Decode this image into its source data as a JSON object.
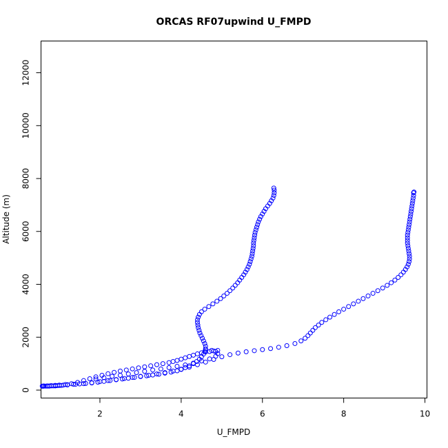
{
  "chart_data": {
    "type": "scatter",
    "title": "ORCAS RF07upwind U_FMPD",
    "xlabel": "U_FMPD",
    "ylabel": "Altitude (m)",
    "xlim": [
      0.55,
      10.05
    ],
    "ylim": [
      -300,
      13200
    ],
    "x_ticks": [
      2,
      4,
      6,
      8,
      10
    ],
    "y_ticks": [
      0,
      2000,
      4000,
      6000,
      8000,
      10000,
      12000
    ],
    "grid": false,
    "marker": "open-circle",
    "color": "#0000ff",
    "series": [
      {
        "points": [
          [
            0.6,
            150
          ],
          [
            0.65,
            150
          ],
          [
            0.7,
            150
          ],
          [
            0.75,
            155
          ],
          [
            0.8,
            160
          ],
          [
            0.85,
            160
          ],
          [
            0.9,
            165
          ],
          [
            0.95,
            170
          ],
          [
            1.0,
            175
          ],
          [
            1.1,
            190
          ],
          [
            1.2,
            205
          ],
          [
            1.35,
            220
          ],
          [
            1.5,
            235
          ],
          [
            1.65,
            250
          ],
          [
            1.8,
            270
          ],
          [
            1.95,
            300
          ],
          [
            2.1,
            330
          ],
          [
            2.25,
            360
          ],
          [
            2.4,
            390
          ],
          [
            2.55,
            420
          ],
          [
            2.7,
            450
          ],
          [
            2.85,
            480
          ],
          [
            3.0,
            510
          ],
          [
            3.15,
            540
          ],
          [
            3.3,
            570
          ],
          [
            3.45,
            600
          ],
          [
            3.6,
            640
          ],
          [
            3.75,
            680
          ],
          [
            3.9,
            730
          ],
          [
            4.0,
            780
          ],
          [
            4.1,
            850
          ],
          [
            4.2,
            920
          ],
          [
            4.3,
            1000
          ],
          [
            4.38,
            1080
          ],
          [
            4.45,
            1170
          ],
          [
            4.5,
            1260
          ],
          [
            4.55,
            1360
          ],
          [
            4.58,
            1460
          ],
          [
            4.6,
            1560
          ],
          [
            4.6,
            1660
          ],
          [
            4.58,
            1760
          ],
          [
            4.55,
            1860
          ],
          [
            4.52,
            1960
          ],
          [
            4.49,
            2060
          ],
          [
            4.46,
            2160
          ],
          [
            4.44,
            2260
          ],
          [
            4.42,
            2360
          ],
          [
            4.41,
            2460
          ],
          [
            4.4,
            2560
          ],
          [
            4.4,
            2660
          ],
          [
            4.42,
            2760
          ],
          [
            4.45,
            2860
          ],
          [
            4.5,
            2960
          ],
          [
            4.58,
            3060
          ],
          [
            4.68,
            3160
          ],
          [
            4.78,
            3260
          ],
          [
            4.88,
            3360
          ],
          [
            4.97,
            3460
          ],
          [
            5.05,
            3560
          ],
          [
            5.13,
            3660
          ],
          [
            5.2,
            3760
          ],
          [
            5.27,
            3860
          ],
          [
            5.33,
            3960
          ],
          [
            5.39,
            4060
          ],
          [
            5.44,
            4160
          ],
          [
            5.49,
            4260
          ],
          [
            5.54,
            4360
          ],
          [
            5.58,
            4460
          ],
          [
            5.62,
            4560
          ],
          [
            5.65,
            4660
          ],
          [
            5.68,
            4760
          ],
          [
            5.7,
            4860
          ],
          [
            5.72,
            4960
          ],
          [
            5.74,
            5060
          ],
          [
            5.75,
            5160
          ],
          [
            5.76,
            5260
          ],
          [
            5.77,
            5360
          ],
          [
            5.78,
            5460
          ],
          [
            5.78,
            5560
          ],
          [
            5.79,
            5660
          ],
          [
            5.8,
            5760
          ],
          [
            5.81,
            5860
          ],
          [
            5.82,
            5960
          ],
          [
            5.84,
            6060
          ],
          [
            5.86,
            6160
          ],
          [
            5.88,
            6260
          ],
          [
            5.9,
            6360
          ],
          [
            5.93,
            6460
          ],
          [
            5.96,
            6560
          ],
          [
            6.0,
            6660
          ],
          [
            6.04,
            6760
          ],
          [
            6.08,
            6860
          ],
          [
            6.13,
            6960
          ],
          [
            6.18,
            7060
          ],
          [
            6.22,
            7160
          ],
          [
            6.26,
            7260
          ],
          [
            6.28,
            7360
          ],
          [
            6.29,
            7460
          ],
          [
            6.29,
            7560
          ],
          [
            6.28,
            7640
          ]
        ]
      },
      {
        "points": [
          [
            4.9,
            1500
          ],
          [
            4.8,
            1480
          ],
          [
            4.7,
            1460
          ],
          [
            4.6,
            1440
          ],
          [
            4.5,
            1410
          ],
          [
            4.4,
            1370
          ],
          [
            4.3,
            1320
          ],
          [
            4.2,
            1270
          ],
          [
            4.1,
            1220
          ],
          [
            4.0,
            1170
          ],
          [
            3.9,
            1120
          ],
          [
            3.8,
            1080
          ],
          [
            3.7,
            1040
          ],
          [
            3.55,
            1000
          ],
          [
            3.4,
            960
          ],
          [
            3.25,
            920
          ],
          [
            3.1,
            880
          ],
          [
            2.95,
            840
          ],
          [
            2.8,
            800
          ],
          [
            2.65,
            760
          ],
          [
            2.5,
            720
          ],
          [
            2.35,
            670
          ],
          [
            2.2,
            620
          ],
          [
            2.05,
            560
          ],
          [
            1.9,
            500
          ],
          [
            1.75,
            430
          ],
          [
            1.6,
            360
          ],
          [
            1.45,
            290
          ],
          [
            1.3,
            240
          ],
          [
            1.15,
            210
          ],
          [
            1.0,
            190
          ],
          [
            0.9,
            180
          ],
          [
            0.8,
            170
          ],
          [
            0.7,
            160
          ],
          [
            0.62,
            155
          ],
          [
            0.58,
            150
          ]
        ]
      },
      {
        "points": [
          [
            0.6,
            145
          ],
          [
            0.75,
            150
          ],
          [
            0.9,
            160
          ],
          [
            1.05,
            175
          ],
          [
            1.2,
            195
          ],
          [
            1.4,
            220
          ],
          [
            1.6,
            245
          ],
          [
            1.8,
            280
          ],
          [
            2.0,
            320
          ],
          [
            2.2,
            360
          ],
          [
            2.4,
            400
          ],
          [
            2.6,
            440
          ],
          [
            2.8,
            480
          ],
          [
            3.0,
            520
          ],
          [
            3.2,
            560
          ],
          [
            3.4,
            610
          ],
          [
            3.6,
            660
          ],
          [
            3.8,
            720
          ],
          [
            4.0,
            790
          ],
          [
            4.2,
            870
          ],
          [
            4.4,
            960
          ],
          [
            4.6,
            1060
          ],
          [
            4.8,
            1160
          ],
          [
            5.0,
            1260
          ],
          [
            5.2,
            1340
          ],
          [
            5.4,
            1400
          ],
          [
            5.6,
            1450
          ],
          [
            5.8,
            1490
          ],
          [
            6.0,
            1530
          ],
          [
            6.2,
            1570
          ],
          [
            6.4,
            1620
          ],
          [
            6.6,
            1680
          ],
          [
            6.8,
            1760
          ],
          [
            6.95,
            1860
          ],
          [
            7.05,
            1960
          ],
          [
            7.12,
            2060
          ],
          [
            7.18,
            2160
          ],
          [
            7.24,
            2260
          ],
          [
            7.3,
            2360
          ],
          [
            7.38,
            2460
          ],
          [
            7.46,
            2560
          ],
          [
            7.56,
            2660
          ],
          [
            7.66,
            2760
          ],
          [
            7.77,
            2860
          ],
          [
            7.88,
            2960
          ],
          [
            8.0,
            3060
          ],
          [
            8.12,
            3160
          ],
          [
            8.24,
            3260
          ],
          [
            8.36,
            3360
          ],
          [
            8.48,
            3460
          ],
          [
            8.6,
            3560
          ],
          [
            8.72,
            3660
          ],
          [
            8.84,
            3760
          ],
          [
            8.96,
            3860
          ],
          [
            9.07,
            3960
          ],
          [
            9.17,
            4060
          ],
          [
            9.26,
            4160
          ],
          [
            9.34,
            4260
          ],
          [
            9.41,
            4360
          ],
          [
            9.47,
            4460
          ],
          [
            9.52,
            4560
          ],
          [
            9.56,
            4660
          ],
          [
            9.59,
            4760
          ],
          [
            9.61,
            4860
          ],
          [
            9.62,
            4960
          ],
          [
            9.62,
            5060
          ],
          [
            9.61,
            5160
          ],
          [
            9.6,
            5260
          ],
          [
            9.59,
            5360
          ],
          [
            9.58,
            5460
          ],
          [
            9.57,
            5560
          ],
          [
            9.57,
            5660
          ],
          [
            9.57,
            5760
          ],
          [
            9.57,
            5860
          ],
          [
            9.58,
            5960
          ],
          [
            9.59,
            6060
          ],
          [
            9.6,
            6160
          ],
          [
            9.61,
            6260
          ],
          [
            9.62,
            6360
          ],
          [
            9.63,
            6460
          ],
          [
            9.64,
            6560
          ],
          [
            9.65,
            6660
          ],
          [
            9.66,
            6760
          ],
          [
            9.67,
            6860
          ],
          [
            9.68,
            6960
          ],
          [
            9.69,
            7060
          ],
          [
            9.7,
            7160
          ],
          [
            9.71,
            7260
          ],
          [
            9.72,
            7360
          ],
          [
            9.72,
            7460
          ],
          [
            9.73,
            7490
          ]
        ]
      },
      {
        "points": [
          [
            1.9,
            420
          ],
          [
            2.1,
            470
          ],
          [
            2.3,
            520
          ],
          [
            2.5,
            560
          ],
          [
            2.7,
            610
          ],
          [
            2.9,
            660
          ],
          [
            3.1,
            710
          ],
          [
            3.3,
            760
          ],
          [
            3.5,
            800
          ],
          [
            3.7,
            850
          ],
          [
            3.9,
            900
          ],
          [
            4.1,
            950
          ],
          [
            4.3,
            1020
          ],
          [
            4.5,
            1100
          ],
          [
            4.7,
            1180
          ],
          [
            4.85,
            1280
          ],
          [
            4.9,
            1380
          ],
          [
            4.85,
            1460
          ],
          [
            4.75,
            1500
          ],
          [
            4.6,
            1510
          ]
        ]
      }
    ]
  }
}
